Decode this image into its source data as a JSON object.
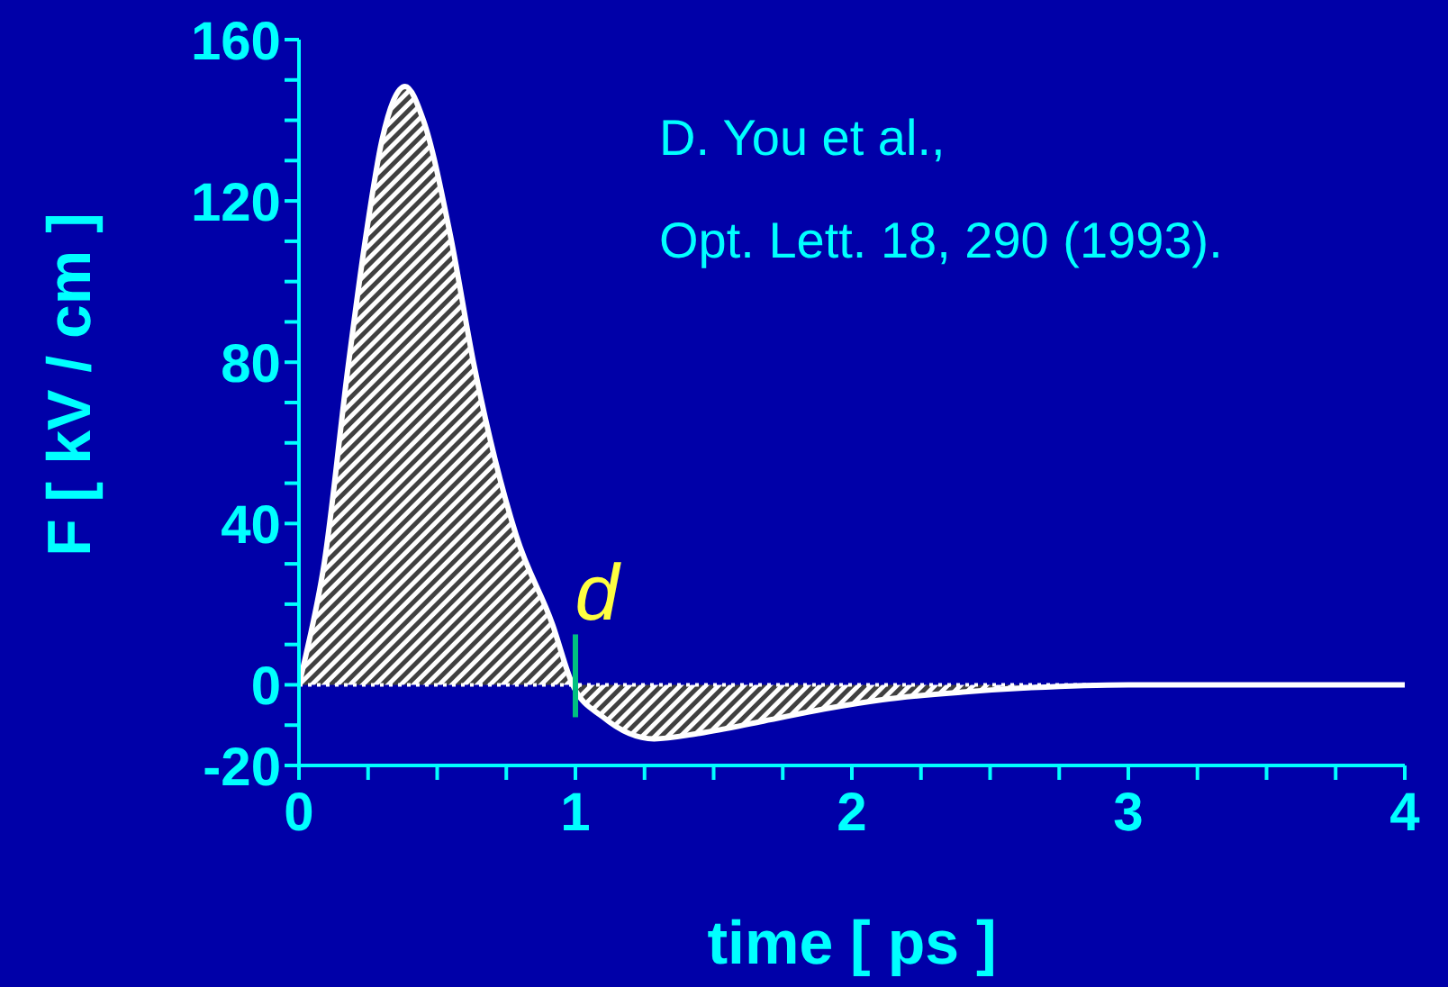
{
  "chart_data": {
    "type": "area",
    "xlabel": "time [ ps ]",
    "ylabel": "F [ kV / cm ]",
    "x": [
      0,
      0.026,
      0.091,
      0.178,
      0.243,
      0.3,
      0.384,
      0.45,
      0.547,
      0.634,
      0.786,
      0.917,
      0.99,
      1.1,
      1.285,
      1.45,
      1.68,
      1.9,
      2.11,
      2.4,
      2.65,
      3,
      3.5,
      4
    ],
    "series": [
      {
        "color": "#ffffff",
        "values": [
          0,
          7.6,
          30,
          79,
          111.7,
          135,
          148.4,
          140,
          111.7,
          79,
          37,
          15,
          0,
          -8,
          -13.4,
          -12,
          -9,
          -6,
          -3.7,
          -1.8,
          -0.7,
          0,
          0,
          0
        ]
      }
    ],
    "xlim": [
      0,
      4
    ],
    "ylim": [
      -20,
      160
    ],
    "xticks": [
      0,
      {
        "value": 0.25,
        "label": null
      },
      {
        "value": 0.5,
        "label": null
      },
      {
        "value": 0.75,
        "label": null
      },
      1,
      {
        "value": 1.25,
        "label": null
      },
      {
        "value": 1.5,
        "label": null
      },
      {
        "value": 1.75,
        "label": null
      },
      2,
      {
        "value": 2.25,
        "label": null
      },
      {
        "value": 2.5,
        "label": null
      },
      {
        "value": 2.75,
        "label": null
      },
      3,
      {
        "value": 3.25,
        "label": null
      },
      {
        "value": 3.5,
        "label": null
      },
      {
        "value": 3.75,
        "label": null
      },
      4
    ],
    "yticks": [
      -20,
      {
        "value": -10,
        "label": null
      },
      0,
      {
        "value": 10,
        "label": null
      },
      {
        "value": 20,
        "label": null
      },
      {
        "value": 30,
        "label": null
      },
      40,
      {
        "value": 50,
        "label": null
      },
      {
        "value": 60,
        "label": null
      },
      {
        "value": 70,
        "label": null
      },
      80,
      {
        "value": 90,
        "label": null
      },
      {
        "value": 100,
        "label": null
      },
      {
        "value": 110,
        "label": null
      },
      120,
      {
        "value": 130,
        "label": null
      },
      {
        "value": 140,
        "label": null
      },
      {
        "value": 150,
        "label": null
      },
      160
    ],
    "ref_lines": [
      {
        "axis": "y",
        "value": 0,
        "color": "#ffffff",
        "line_style": "dotted"
      }
    ],
    "annotations": [
      "D. You et al.,",
      "Opt. Lett. 18, 290 (1993).",
      {
        "text": "d",
        "x": 1,
        "y": 0
      }
    ]
  }
}
